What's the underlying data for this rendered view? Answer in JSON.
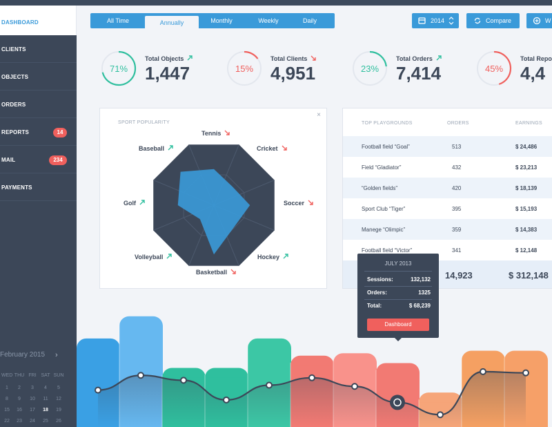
{
  "sidebar": {
    "dashboard_label": "DASHBOARD",
    "items": [
      {
        "label": "CLIENTS",
        "badge": ""
      },
      {
        "label": "OBJECTS",
        "badge": ""
      },
      {
        "label": "ORDERS",
        "badge": ""
      },
      {
        "label": "REPORTS",
        "badge": "14"
      },
      {
        "label": "MAIL",
        "badge": "234"
      },
      {
        "label": "PAYMENTS",
        "badge": ""
      }
    ],
    "calendar": {
      "month": "February 2015",
      "next_icon": "chevron-right-icon",
      "weekdays": [
        "WED",
        "THU",
        "FRI",
        "SAT",
        "SUN"
      ],
      "rows": [
        [
          "1",
          "2",
          "3",
          "4",
          "5"
        ],
        [
          "8",
          "9",
          "10",
          "11",
          "12"
        ],
        [
          "15",
          "16",
          "17",
          "18",
          "19"
        ],
        [
          "22",
          "23",
          "24",
          "25",
          "26"
        ]
      ],
      "today": "18"
    }
  },
  "toolbar": {
    "tabs": [
      "All Time",
      "Annually",
      "Monthly",
      "Weekly",
      "Daily"
    ],
    "active_tab": "Annually",
    "year_label": "2014",
    "compare_label": "Compare",
    "add_label": "W"
  },
  "stats": [
    {
      "label": "Total Objects",
      "value": "1,447",
      "percent": "71%",
      "fraction": 0.71,
      "trend": "up",
      "color": "#2fbf9e"
    },
    {
      "label": "Total Clients",
      "value": "4,951",
      "percent": "15%",
      "fraction": 0.15,
      "trend": "down",
      "color": "#f0605d"
    },
    {
      "label": "Total Orders",
      "value": "7,414",
      "percent": "23%",
      "fraction": 0.23,
      "trend": "up",
      "color": "#2fbf9e"
    },
    {
      "label": "Total Repor",
      "value": "4,4",
      "percent": "45%",
      "fraction": 0.45,
      "trend": "down",
      "color": "#f0605d"
    }
  ],
  "radar": {
    "caption": "SPORT POPULARITY",
    "labels": [
      {
        "name": "Tennis",
        "trend": "down"
      },
      {
        "name": "Cricket",
        "trend": "down"
      },
      {
        "name": "Soccer",
        "trend": "down"
      },
      {
        "name": "Hockey",
        "trend": "up"
      },
      {
        "name": "Basketball",
        "trend": "down"
      },
      {
        "name": "Volleyball",
        "trend": "up"
      },
      {
        "name": "Golf",
        "trend": "up"
      },
      {
        "name": "Baseball",
        "trend": "up"
      }
    ],
    "values": [
      0.55,
      0.4,
      0.55,
      0.45,
      0.75,
      0.3,
      0.55,
      0.72
    ]
  },
  "table": {
    "headers": [
      "TOP PLAYGROUNDS",
      "ORDERS",
      "EARNINGS"
    ],
    "rows": [
      [
        "Football field “Goal”",
        "513",
        "$ 24,486"
      ],
      [
        "Field “Gladiator”",
        "432",
        "$ 23,213"
      ],
      [
        "“Golden fields”",
        "420",
        "$ 18,139"
      ],
      [
        "Sport Club “Tiger”",
        "395",
        "$ 15,193"
      ],
      [
        "Manege “Olimpic”",
        "359",
        "$ 14,383"
      ],
      [
        "Football field “Victor”",
        "341",
        "$ 12,148"
      ]
    ],
    "total_orders": "14,923",
    "total_earnings": "$ 312,148"
  },
  "tooltip": {
    "title": "JULY 2013",
    "rows": [
      {
        "k": "Sessions:",
        "v": "132,132"
      },
      {
        "k": "Orders:",
        "v": "1325"
      },
      {
        "k": "Total:",
        "v": "$ 68,239"
      }
    ],
    "button": "Dashboard"
  },
  "wave_chart": {
    "bar_colors": [
      "#3aa0e4",
      "#66b8f0",
      "#2fbf9e",
      "#2fbf9e",
      "#3cc7a5",
      "#f27a73",
      "#f9928b",
      "#f27a73",
      "#f6a579",
      "#f5a062",
      "#f6a068"
    ],
    "bar_levels": [
      0.72,
      0.9,
      0.48,
      0.48,
      0.72,
      0.58,
      0.6,
      0.52,
      0.28,
      0.62,
      0.62
    ],
    "line_levels": [
      0.3,
      0.42,
      0.38,
      0.22,
      0.34,
      0.4,
      0.33,
      0.2,
      0.1,
      0.45,
      0.44
    ]
  }
}
